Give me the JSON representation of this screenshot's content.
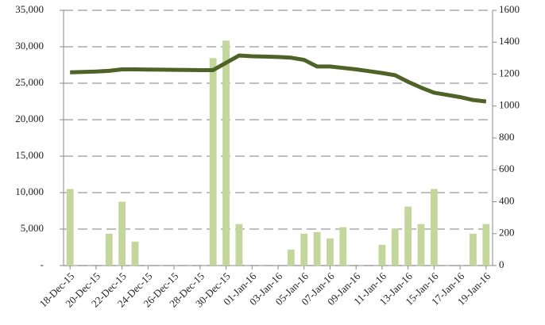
{
  "chart_data": {
    "type": "bar-line",
    "categories": [
      "18-Dec-15",
      null,
      "20-Dec-15",
      null,
      "22-Dec-15",
      null,
      "24-Dec-15",
      null,
      "26-Dec-15",
      null,
      "28-Dec-15",
      null,
      "30-Dec-15",
      null,
      "01-Jan-16",
      null,
      "03-Jan-16",
      null,
      "05-Jan-16",
      null,
      "07-Jan-16",
      null,
      "09-Jan-16",
      null,
      "11-Jan-16",
      null,
      "13-Jan-16",
      null,
      "15-Jan-16",
      null,
      "17-Jan-16",
      null,
      "19-Jan-16"
    ],
    "series": [
      {
        "type": "bar",
        "color": "#c3d69b",
        "axis": "y2",
        "values": [
          480,
          null,
          null,
          200,
          400,
          150,
          null,
          null,
          null,
          null,
          null,
          1300,
          1410,
          260,
          null,
          null,
          null,
          100,
          200,
          210,
          170,
          240,
          null,
          null,
          130,
          230,
          370,
          260,
          480,
          null,
          null,
          200,
          260
        ]
      },
      {
        "type": "line",
        "color": "#4f6228",
        "values": [
          26500,
          26550,
          26600,
          26700,
          26900,
          26900,
          26880,
          26860,
          26840,
          26820,
          26800,
          26800,
          27800,
          28800,
          28700,
          28650,
          28600,
          28500,
          28200,
          27300,
          27300,
          27100,
          26900,
          26650,
          26400,
          26100,
          25200,
          24400,
          23700,
          23400,
          23100,
          22700,
          22500
        ]
      }
    ],
    "ylim": [
      0,
      35000
    ],
    "yticks": [
      {
        "value": 0,
        "label": "-"
      },
      {
        "value": 5000,
        "label": "5,000"
      },
      {
        "value": 10000,
        "label": "10,000"
      },
      {
        "value": 15000,
        "label": "15,000"
      },
      {
        "value": 20000,
        "label": "20,000"
      },
      {
        "value": 25000,
        "label": "25,000"
      },
      {
        "value": 30000,
        "label": "30,000"
      },
      {
        "value": 35000,
        "label": "35,000"
      }
    ],
    "y2lim": [
      0,
      1600
    ],
    "y2ticks": [
      0,
      200,
      400,
      600,
      800,
      1000,
      1200,
      1400,
      1600
    ],
    "grid": true
  }
}
